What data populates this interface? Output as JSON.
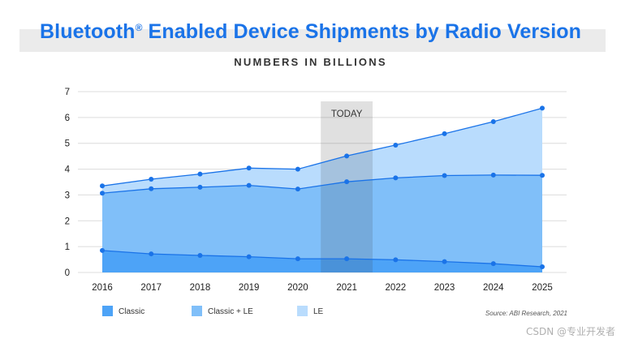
{
  "header": {
    "title": "Bluetooth",
    "title_mark": "®",
    "title_rest": " Enabled Device Shipments by Radio Version",
    "subtitle": "NUMBERS IN BILLIONS"
  },
  "chart_data": {
    "type": "area",
    "categories": [
      "2016",
      "2017",
      "2018",
      "2019",
      "2020",
      "2021",
      "2022",
      "2023",
      "2024",
      "2025"
    ],
    "series": [
      {
        "name": "Classic",
        "color": "#4da3f7",
        "values": [
          0.85,
          0.72,
          0.66,
          0.61,
          0.53,
          0.53,
          0.49,
          0.42,
          0.34,
          0.22
        ]
      },
      {
        "name": "Classic + LE",
        "color": "#80bff9",
        "values": [
          2.22,
          2.52,
          2.64,
          2.76,
          2.7,
          2.98,
          3.17,
          3.33,
          3.43,
          3.54
        ]
      },
      {
        "name": "LE",
        "color": "#b9dcfd",
        "values": [
          0.28,
          0.37,
          0.51,
          0.67,
          0.77,
          1.0,
          1.27,
          1.62,
          2.07,
          2.6
        ]
      }
    ],
    "totals": [
      3.35,
      3.61,
      3.81,
      4.04,
      4.0,
      4.51,
      4.93,
      5.37,
      5.84,
      6.36
    ],
    "ylim": [
      0,
      7
    ],
    "yticks": [
      "0",
      "1",
      "2",
      "3",
      "4",
      "5",
      "6",
      "7"
    ],
    "grid": true,
    "highlight": {
      "category": "2021",
      "label": "TODAY"
    },
    "legend_position": "bottom-left",
    "point_color": "#1a73e8",
    "source": "Source: ABI Research, 2021"
  },
  "watermark": "CSDN @专业开发者"
}
